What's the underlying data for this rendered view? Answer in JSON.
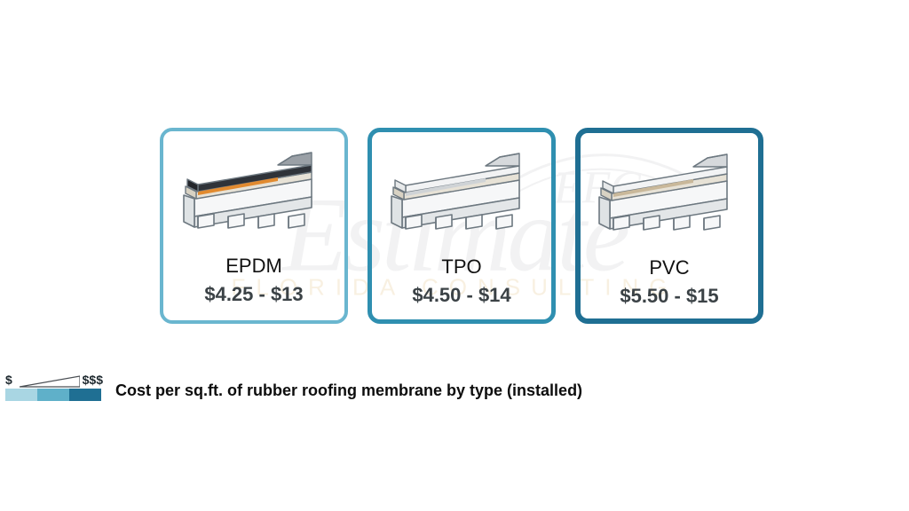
{
  "watermark": {
    "efc": "EFC",
    "estimate": "Estimate",
    "subline": "FLORIDA CONSULTING"
  },
  "cards": [
    {
      "label": "EPDM",
      "price": "$4.25 - $13",
      "border_color": "#6ab6cf",
      "border_width": 4,
      "membrane_top_color": "#2f3339",
      "membrane_accent_color": "#e18a2f",
      "membrane_peel_color": "#9aa0a6",
      "insulation_color": "#e7e2d6",
      "deck_color": "#f6f7f8",
      "deck_edge": "#6d7880"
    },
    {
      "label": "TPO",
      "price": "$4.50 - $14",
      "border_color": "#2f8fb0",
      "border_width": 5,
      "membrane_top_color": "#f2f3f4",
      "membrane_accent_color": "#cfd3d6",
      "membrane_peel_color": "#d6d9dc",
      "insulation_color": "#e7e2d6",
      "deck_color": "#f6f7f8",
      "deck_edge": "#6d7880"
    },
    {
      "label": "PVC",
      "price": "$5.50 - $15",
      "border_color": "#1f6f93",
      "border_width": 6,
      "membrane_top_color": "#f2f3f4",
      "membrane_accent_color": "#c9b89a",
      "membrane_peel_color": "#d6d9dc",
      "insulation_color": "#e7e2d6",
      "deck_color": "#f6f7f8",
      "deck_edge": "#6d7880"
    }
  ],
  "legend": {
    "lo": "$",
    "hi": "$$$",
    "gradient_colors": [
      "#a9d6e3",
      "#5fb0c9",
      "#1f6f93"
    ],
    "caption": "Cost per sq.ft. of rubber roofing membrane by type (installed)"
  },
  "styling": {
    "background_color": "#ffffff",
    "label_fontsize": 22,
    "price_fontsize": 22,
    "price_weight": 700,
    "card_radius": 14,
    "caption_fontsize": 18,
    "caption_weight": 800
  }
}
